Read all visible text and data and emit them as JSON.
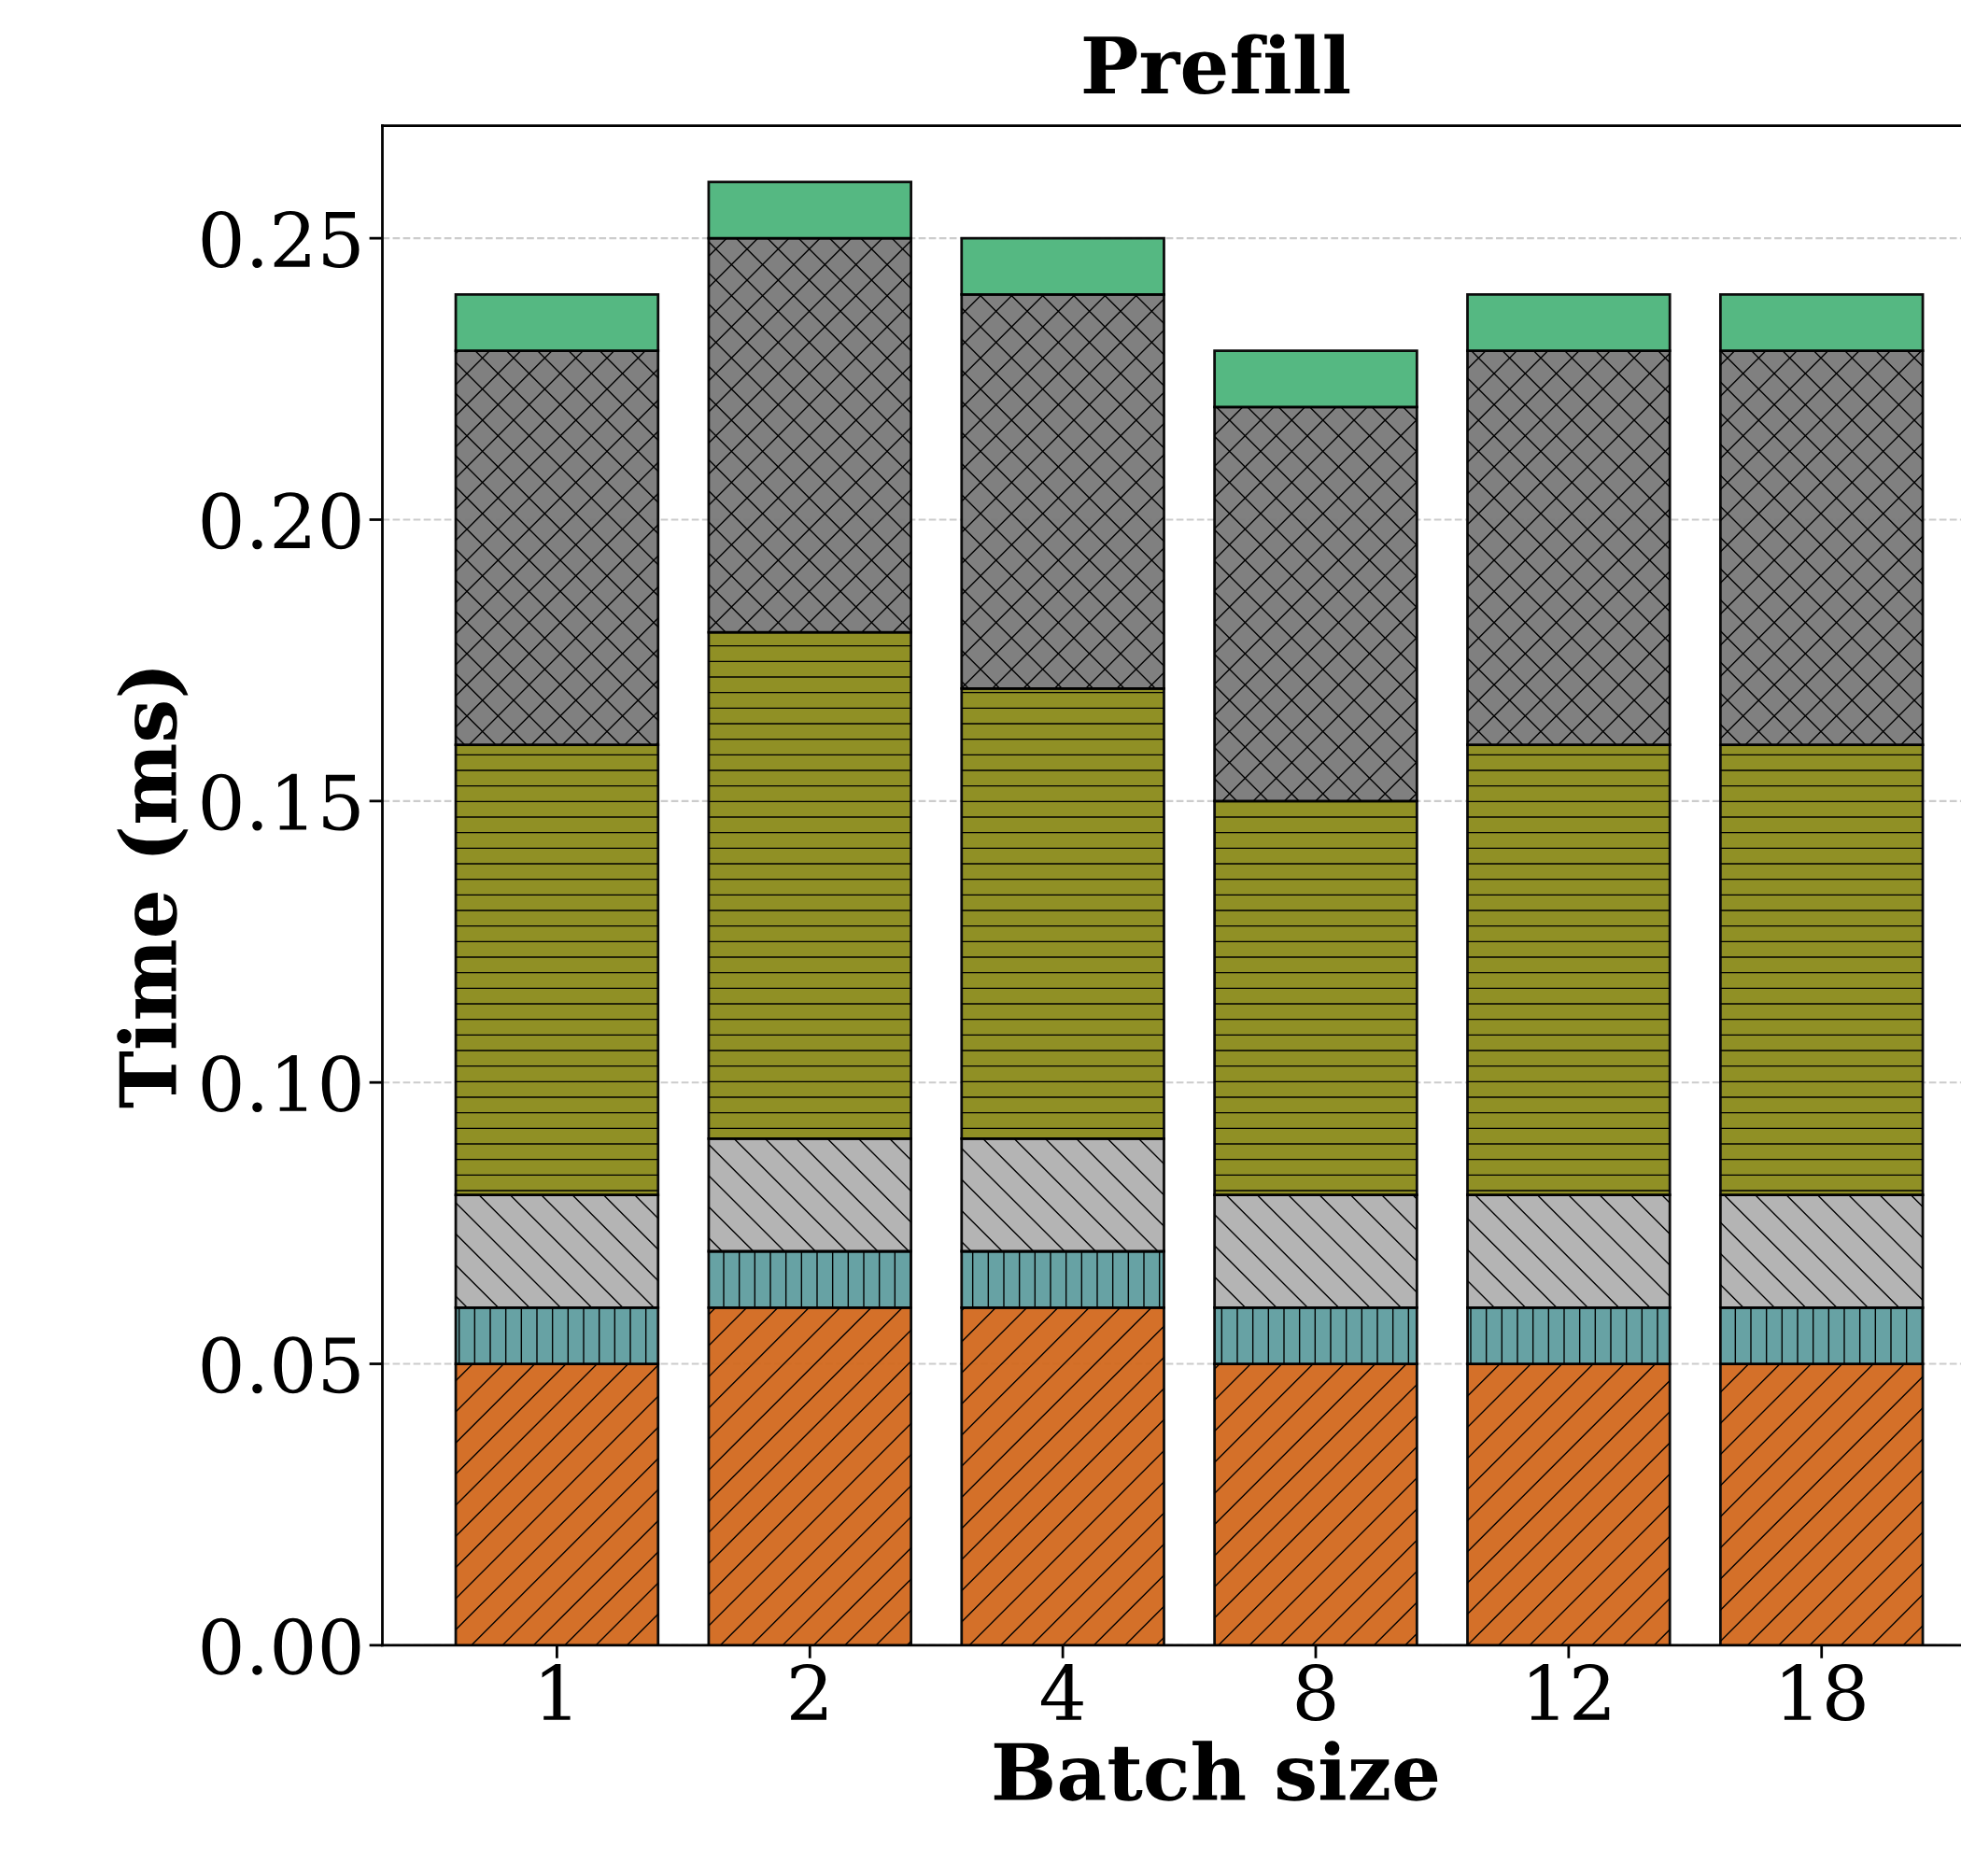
{
  "chart_data": {
    "type": "bar",
    "title": "Prefill",
    "xlabel": "Batch size",
    "ylabel": "Time (ms)",
    "categories": [
      "1",
      "2",
      "4",
      "8",
      "12",
      "18"
    ],
    "stacked": true,
    "series": [
      {
        "color": "#d2691e",
        "values": [
          0.05,
          0.06,
          0.06,
          0.05,
          0.05,
          0.05
        ]
      },
      {
        "color": "#5f9ea0",
        "values": [
          0.01,
          0.01,
          0.01,
          0.01,
          0.01,
          0.01
        ]
      },
      {
        "color": "#b0b0b0",
        "values": [
          0.02,
          0.02,
          0.02,
          0.02,
          0.02,
          0.02
        ]
      },
      {
        "color": "#8b8b1a",
        "values": [
          0.08,
          0.09,
          0.08,
          0.07,
          0.08,
          0.08
        ]
      },
      {
        "color": "#7a7a7a",
        "values": [
          0.07,
          0.07,
          0.07,
          0.07,
          0.07,
          0.07
        ]
      },
      {
        "color": "#4cb57c",
        "values": [
          0.01,
          0.01,
          0.01,
          0.01,
          0.01,
          0.01
        ]
      }
    ],
    "ylim": [
      0,
      0.27
    ],
    "yticks": [
      {
        "value": 0,
        "label": "0.00"
      },
      0.05,
      {
        "value": 0.1,
        "label": "0.10"
      },
      0.15,
      {
        "value": 0.2,
        "label": "0.20"
      },
      0.25
    ],
    "grid": "y"
  }
}
